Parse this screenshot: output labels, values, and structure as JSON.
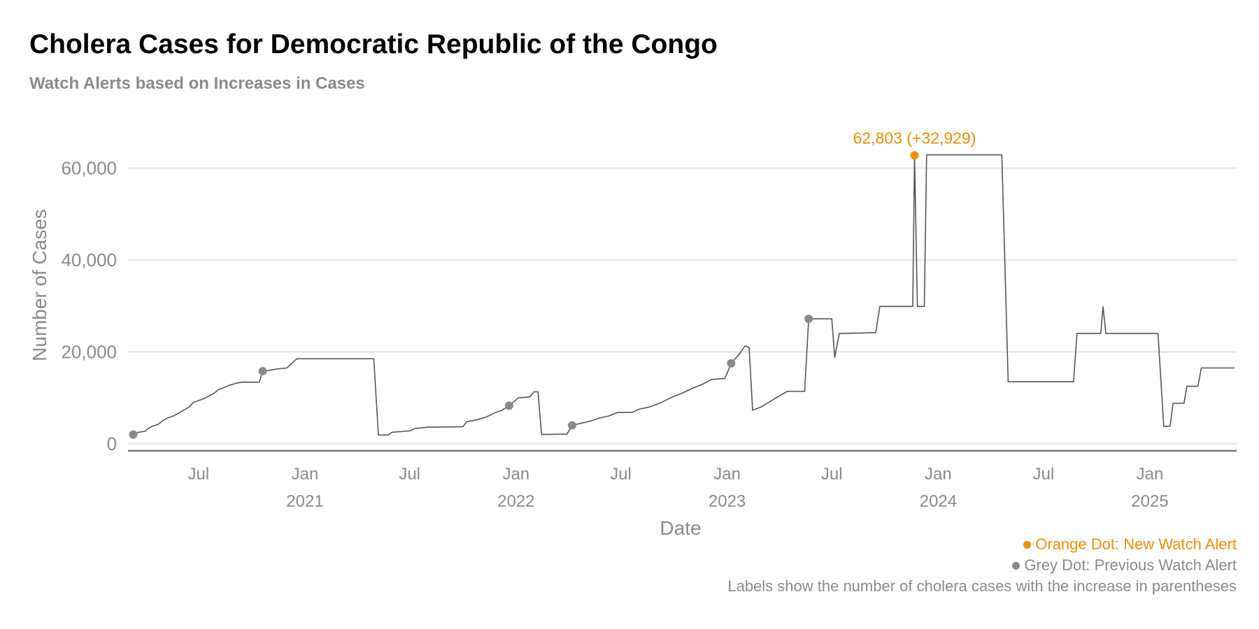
{
  "chart_data": {
    "type": "line",
    "title": "Cholera Cases for Democratic Republic of the Congo",
    "subtitle": "Watch Alerts based on Increases in Cases",
    "xlabel": "Date",
    "ylabel": "Number of Cases",
    "xlim": [
      "2020-03-01",
      "2025-05-31"
    ],
    "ylim": [
      -2000,
      70000
    ],
    "y_ticks": [
      0,
      20000,
      40000,
      60000
    ],
    "y_tick_labels": [
      "0",
      "20,000",
      "40,000",
      "60,000"
    ],
    "x_ticks": [
      {
        "date": "2020-07-01",
        "label": "Jul",
        "year": ""
      },
      {
        "date": "2021-01-01",
        "label": "Jan",
        "year": "2021"
      },
      {
        "date": "2021-07-01",
        "label": "Jul",
        "year": ""
      },
      {
        "date": "2022-01-01",
        "label": "Jan",
        "year": "2022"
      },
      {
        "date": "2022-07-01",
        "label": "Jul",
        "year": ""
      },
      {
        "date": "2023-01-01",
        "label": "Jan",
        "year": "2023"
      },
      {
        "date": "2023-07-01",
        "label": "Jul",
        "year": ""
      },
      {
        "date": "2024-01-01",
        "label": "Jan",
        "year": "2024"
      },
      {
        "date": "2024-07-01",
        "label": "Jul",
        "year": ""
      },
      {
        "date": "2025-01-01",
        "label": "Jan",
        "year": "2025"
      }
    ],
    "grid": true,
    "line_color": "#555555",
    "series": [
      {
        "name": "",
        "points": [
          [
            "2020-03-10",
            2000
          ],
          [
            "2020-03-20",
            2500
          ],
          [
            "2020-03-30",
            2700
          ],
          [
            "2020-04-05",
            3300
          ],
          [
            "2020-04-12",
            3800
          ],
          [
            "2020-04-22",
            4200
          ],
          [
            "2020-04-30",
            5000
          ],
          [
            "2020-05-08",
            5600
          ],
          [
            "2020-05-18",
            6000
          ],
          [
            "2020-05-27",
            6600
          ],
          [
            "2020-06-05",
            7300
          ],
          [
            "2020-06-15",
            8000
          ],
          [
            "2020-06-22",
            9000
          ],
          [
            "2020-07-01",
            9400
          ],
          [
            "2020-07-10",
            9800
          ],
          [
            "2020-07-20",
            10500
          ],
          [
            "2020-07-28",
            11000
          ],
          [
            "2020-08-05",
            11800
          ],
          [
            "2020-08-15",
            12300
          ],
          [
            "2020-08-25",
            12800
          ],
          [
            "2020-09-05",
            13200
          ],
          [
            "2020-09-15",
            13400
          ],
          [
            "2020-10-02",
            13400
          ],
          [
            "2020-10-14",
            13400
          ],
          [
            "2020-10-20",
            15800
          ],
          [
            "2020-11-01",
            16000
          ],
          [
            "2020-11-15",
            16300
          ],
          [
            "2020-12-01",
            16500
          ],
          [
            "2020-12-10",
            17600
          ],
          [
            "2020-12-18",
            18500
          ],
          [
            "2021-04-30",
            18500
          ],
          [
            "2021-05-08",
            1900
          ],
          [
            "2021-05-25",
            1900
          ],
          [
            "2021-06-01",
            2500
          ],
          [
            "2021-07-01",
            2800
          ],
          [
            "2021-07-10",
            3300
          ],
          [
            "2021-08-01",
            3600
          ],
          [
            "2021-10-01",
            3700
          ],
          [
            "2021-10-08",
            4800
          ],
          [
            "2021-10-25",
            5200
          ],
          [
            "2021-11-10",
            5800
          ],
          [
            "2021-11-25",
            6700
          ],
          [
            "2021-12-08",
            7300
          ],
          [
            "2021-12-20",
            8300
          ],
          [
            "2022-01-05",
            10000
          ],
          [
            "2022-01-25",
            10200
          ],
          [
            "2022-02-01",
            11300
          ],
          [
            "2022-02-08",
            11300
          ],
          [
            "2022-02-14",
            2000
          ],
          [
            "2022-03-30",
            2100
          ],
          [
            "2022-04-08",
            4000
          ],
          [
            "2022-04-25",
            4500
          ],
          [
            "2022-05-12",
            5000
          ],
          [
            "2022-05-25",
            5600
          ],
          [
            "2022-06-10",
            6000
          ],
          [
            "2022-06-25",
            6800
          ],
          [
            "2022-07-20",
            6800
          ],
          [
            "2022-08-01",
            7500
          ],
          [
            "2022-08-20",
            8000
          ],
          [
            "2022-09-10",
            9000
          ],
          [
            "2022-09-25",
            10000
          ],
          [
            "2022-10-15",
            11000
          ],
          [
            "2022-11-01",
            12000
          ],
          [
            "2022-11-20",
            13000
          ],
          [
            "2022-12-05",
            14000
          ],
          [
            "2022-12-28",
            14200
          ],
          [
            "2023-01-08",
            17500
          ],
          [
            "2023-01-22",
            19500
          ],
          [
            "2023-02-01",
            21300
          ],
          [
            "2023-02-08",
            21000
          ],
          [
            "2023-02-14",
            7300
          ],
          [
            "2023-03-01",
            8000
          ],
          [
            "2023-03-20",
            9500
          ],
          [
            "2023-04-15",
            11400
          ],
          [
            "2023-05-15",
            11400
          ],
          [
            "2023-05-22",
            27200
          ],
          [
            "2023-07-01",
            27200
          ],
          [
            "2023-07-06",
            18800
          ],
          [
            "2023-07-14",
            24000
          ],
          [
            "2023-09-15",
            24200
          ],
          [
            "2023-09-22",
            29900
          ],
          [
            "2023-11-18",
            29900
          ],
          [
            "2023-11-21",
            62803
          ],
          [
            "2023-11-26",
            29900
          ],
          [
            "2023-12-08",
            29900
          ],
          [
            "2023-12-12",
            62900
          ],
          [
            "2024-04-20",
            62900
          ],
          [
            "2024-05-01",
            13500
          ],
          [
            "2024-08-22",
            13500
          ],
          [
            "2024-08-28",
            24000
          ],
          [
            "2024-10-08",
            24000
          ],
          [
            "2024-10-12",
            29800
          ],
          [
            "2024-10-17",
            24000
          ],
          [
            "2025-01-15",
            24000
          ],
          [
            "2025-01-25",
            3800
          ],
          [
            "2025-02-05",
            3800
          ],
          [
            "2025-02-10",
            8800
          ],
          [
            "2025-03-01",
            8800
          ],
          [
            "2025-03-06",
            12500
          ],
          [
            "2025-03-25",
            12500
          ],
          [
            "2025-03-31",
            16500
          ],
          [
            "2025-05-28",
            16500
          ]
        ]
      }
    ],
    "alerts": [
      {
        "date": "2020-03-10",
        "value": 2000,
        "status": "previous"
      },
      {
        "date": "2020-10-20",
        "value": 15800,
        "status": "previous"
      },
      {
        "date": "2021-12-20",
        "value": 8300,
        "status": "previous"
      },
      {
        "date": "2022-04-08",
        "value": 4000,
        "status": "previous"
      },
      {
        "date": "2023-01-08",
        "value": 17500,
        "status": "previous"
      },
      {
        "date": "2023-05-22",
        "value": 27200,
        "status": "previous"
      },
      {
        "date": "2023-11-21",
        "value": 62803,
        "status": "new",
        "label": "62,803 (+32,929)"
      }
    ],
    "colors": {
      "new_alert": "#f28c00",
      "previous_alert": "#8a8a8a"
    }
  },
  "legend": {
    "orange": "Orange Dot: New Watch Alert",
    "grey": "Grey Dot: Previous Watch Alert",
    "note": "Labels show the number of cholera cases with the increase in parentheses"
  }
}
